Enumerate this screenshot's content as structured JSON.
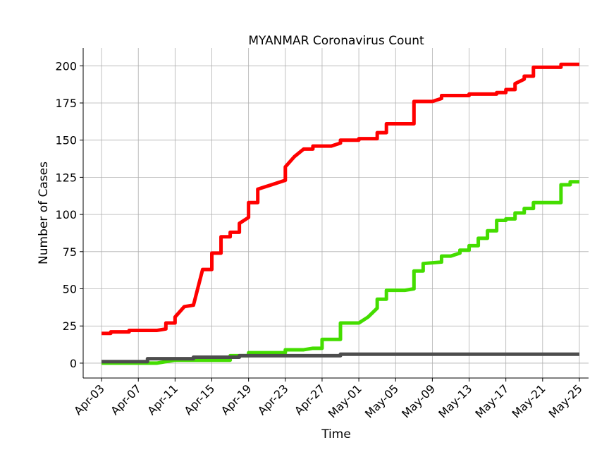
{
  "chart_data": {
    "type": "line",
    "title": "MYANMAR Coronavirus Count",
    "xlabel": "Time",
    "ylabel": "Number of Cases",
    "xlim": [
      "2020-04-01",
      "2020-05-26"
    ],
    "ylim": [
      -10,
      212
    ],
    "grid": true,
    "x_ticks": [
      "Apr-03",
      "Apr-07",
      "Apr-11",
      "Apr-15",
      "Apr-19",
      "Apr-23",
      "Apr-27",
      "May-01",
      "May-05",
      "May-09",
      "May-13",
      "May-17",
      "May-21",
      "May-25"
    ],
    "x_tick_dates": [
      "2020-04-03",
      "2020-04-07",
      "2020-04-11",
      "2020-04-15",
      "2020-04-19",
      "2020-04-23",
      "2020-04-27",
      "2020-05-01",
      "2020-05-05",
      "2020-05-09",
      "2020-05-13",
      "2020-05-17",
      "2020-05-21",
      "2020-05-25"
    ],
    "y_ticks": [
      0,
      25,
      50,
      75,
      100,
      125,
      150,
      175,
      200
    ],
    "series": [
      {
        "color": "#ff0000",
        "points": [
          [
            "2020-04-03",
            20
          ],
          [
            "2020-04-04",
            20
          ],
          [
            "2020-04-04",
            21
          ],
          [
            "2020-04-06",
            21
          ],
          [
            "2020-04-06",
            22
          ],
          [
            "2020-04-09",
            22
          ],
          [
            "2020-04-10",
            23
          ],
          [
            "2020-04-10",
            27
          ],
          [
            "2020-04-11",
            27
          ],
          [
            "2020-04-11",
            31
          ],
          [
            "2020-04-12",
            38
          ],
          [
            "2020-04-13",
            39
          ],
          [
            "2020-04-14",
            63
          ],
          [
            "2020-04-15",
            63
          ],
          [
            "2020-04-15",
            74
          ],
          [
            "2020-04-16",
            74
          ],
          [
            "2020-04-16",
            85
          ],
          [
            "2020-04-17",
            85
          ],
          [
            "2020-04-17",
            88
          ],
          [
            "2020-04-18",
            88
          ],
          [
            "2020-04-18",
            94
          ],
          [
            "2020-04-19",
            98
          ],
          [
            "2020-04-19",
            108
          ],
          [
            "2020-04-20",
            108
          ],
          [
            "2020-04-20",
            117
          ],
          [
            "2020-04-23",
            123
          ],
          [
            "2020-04-23",
            132
          ],
          [
            "2020-04-24",
            139
          ],
          [
            "2020-04-25",
            144
          ],
          [
            "2020-04-26",
            144
          ],
          [
            "2020-04-26",
            146
          ],
          [
            "2020-04-28",
            146
          ],
          [
            "2020-04-29",
            148
          ],
          [
            "2020-04-29",
            150
          ],
          [
            "2020-05-01",
            150
          ],
          [
            "2020-05-01",
            151
          ],
          [
            "2020-05-03",
            151
          ],
          [
            "2020-05-03",
            155
          ],
          [
            "2020-05-04",
            155
          ],
          [
            "2020-05-04",
            161
          ],
          [
            "2020-05-07",
            161
          ],
          [
            "2020-05-07",
            176
          ],
          [
            "2020-05-09",
            176
          ],
          [
            "2020-05-10",
            178
          ],
          [
            "2020-05-10",
            180
          ],
          [
            "2020-05-13",
            180
          ],
          [
            "2020-05-13",
            181
          ],
          [
            "2020-05-16",
            181
          ],
          [
            "2020-05-16",
            182
          ],
          [
            "2020-05-17",
            182
          ],
          [
            "2020-05-17",
            184
          ],
          [
            "2020-05-18",
            184
          ],
          [
            "2020-05-18",
            188
          ],
          [
            "2020-05-19",
            191
          ],
          [
            "2020-05-19",
            193
          ],
          [
            "2020-05-20",
            193
          ],
          [
            "2020-05-20",
            199
          ],
          [
            "2020-05-23",
            199
          ],
          [
            "2020-05-23",
            201
          ],
          [
            "2020-05-25",
            201
          ]
        ]
      },
      {
        "color": "#44dd00",
        "points": [
          [
            "2020-04-03",
            0
          ],
          [
            "2020-04-09",
            0
          ],
          [
            "2020-04-10",
            1
          ],
          [
            "2020-04-10",
            1
          ],
          [
            "2020-04-11",
            2
          ],
          [
            "2020-04-17",
            2
          ],
          [
            "2020-04-17",
            5
          ],
          [
            "2020-04-19",
            5
          ],
          [
            "2020-04-19",
            7
          ],
          [
            "2020-04-23",
            7
          ],
          [
            "2020-04-23",
            9
          ],
          [
            "2020-04-25",
            9
          ],
          [
            "2020-04-26",
            10
          ],
          [
            "2020-04-27",
            10
          ],
          [
            "2020-04-27",
            16
          ],
          [
            "2020-04-29",
            16
          ],
          [
            "2020-04-29",
            27
          ],
          [
            "2020-05-01",
            27
          ],
          [
            "2020-05-02",
            31
          ],
          [
            "2020-05-03",
            37
          ],
          [
            "2020-05-03",
            43
          ],
          [
            "2020-05-04",
            43
          ],
          [
            "2020-05-04",
            49
          ],
          [
            "2020-05-06",
            49
          ],
          [
            "2020-05-07",
            50
          ],
          [
            "2020-05-07",
            62
          ],
          [
            "2020-05-08",
            62
          ],
          [
            "2020-05-08",
            67
          ],
          [
            "2020-05-10",
            68
          ],
          [
            "2020-05-10",
            72
          ],
          [
            "2020-05-11",
            72
          ],
          [
            "2020-05-12",
            74
          ],
          [
            "2020-05-12",
            76
          ],
          [
            "2020-05-13",
            76
          ],
          [
            "2020-05-13",
            79
          ],
          [
            "2020-05-14",
            79
          ],
          [
            "2020-05-14",
            84
          ],
          [
            "2020-05-15",
            84
          ],
          [
            "2020-05-15",
            89
          ],
          [
            "2020-05-16",
            89
          ],
          [
            "2020-05-16",
            96
          ],
          [
            "2020-05-17",
            96
          ],
          [
            "2020-05-17",
            97
          ],
          [
            "2020-05-18",
            97
          ],
          [
            "2020-05-18",
            101
          ],
          [
            "2020-05-19",
            101
          ],
          [
            "2020-05-19",
            104
          ],
          [
            "2020-05-20",
            104
          ],
          [
            "2020-05-20",
            108
          ],
          [
            "2020-05-23",
            108
          ],
          [
            "2020-05-23",
            120
          ],
          [
            "2020-05-24",
            120
          ],
          [
            "2020-05-24",
            122
          ],
          [
            "2020-05-25",
            122
          ]
        ]
      },
      {
        "color": "#4d4d4d",
        "points": [
          [
            "2020-04-03",
            1
          ],
          [
            "2020-04-08",
            1
          ],
          [
            "2020-04-08",
            3
          ],
          [
            "2020-04-13",
            3
          ],
          [
            "2020-04-13",
            4
          ],
          [
            "2020-04-18",
            4
          ],
          [
            "2020-04-18",
            5
          ],
          [
            "2020-04-29",
            5
          ],
          [
            "2020-04-29",
            6
          ],
          [
            "2020-05-25",
            6
          ]
        ]
      }
    ]
  }
}
